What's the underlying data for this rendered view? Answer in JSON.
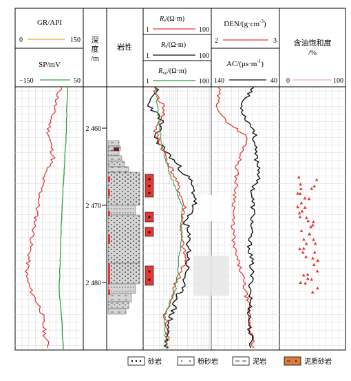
{
  "header": {
    "gr": {
      "name": "GR/API",
      "min": "0",
      "max": "150",
      "color": "#f4a13a"
    },
    "sp": {
      "name": "SP/mV",
      "min": "−150",
      "max": "50",
      "color": "#2e9e3c"
    },
    "depth": {
      "line1": "深",
      "line2": "度",
      "line3": "/m"
    },
    "lithology": "岩性",
    "rt": {
      "name_sym": "R",
      "name_sub": "t",
      "name_unit": "/(Ω·m)",
      "min": "1",
      "max": "100",
      "color": "#e53935"
    },
    "ri": {
      "name_sym": "R",
      "name_sub": "i",
      "name_unit": "/(Ω·m)",
      "min": "1",
      "max": "100",
      "color": "#111111"
    },
    "rxo": {
      "name_sym": "R",
      "name_sub": "xo",
      "name_unit": "/(Ω·m)",
      "min": "1",
      "max": "100",
      "color": "#2e9e3c"
    },
    "den": {
      "name": "DEN/(g·cm",
      "sup": "-3",
      "tail": ")",
      "min": "2",
      "max": "3",
      "color": "#e53935"
    },
    "ac": {
      "name": "AC/(μs·m",
      "sup": "-1",
      "tail": ")",
      "min": "140",
      "max": "40",
      "color": "#111111"
    },
    "so": {
      "line1": "含油饱和度",
      "line2": "/%",
      "min": "0",
      "max": "100",
      "color": "#f4a7b9"
    }
  },
  "depth_ticks": [
    "2 460",
    "2 470",
    "2 480"
  ],
  "legend": [
    {
      "label": "砂岩",
      "pattern": "sandstone"
    },
    {
      "label": "粉砂岩",
      "pattern": "siltstone"
    },
    {
      "label": "泥岩",
      "pattern": "mudstone"
    },
    {
      "label": "泥质砂岩",
      "pattern": "muddy-sandstone"
    }
  ],
  "colors": {
    "red": "#e53935",
    "green": "#2e9e3c",
    "black": "#111111",
    "orange": "#f4a13a",
    "oil": "#e53935"
  }
}
